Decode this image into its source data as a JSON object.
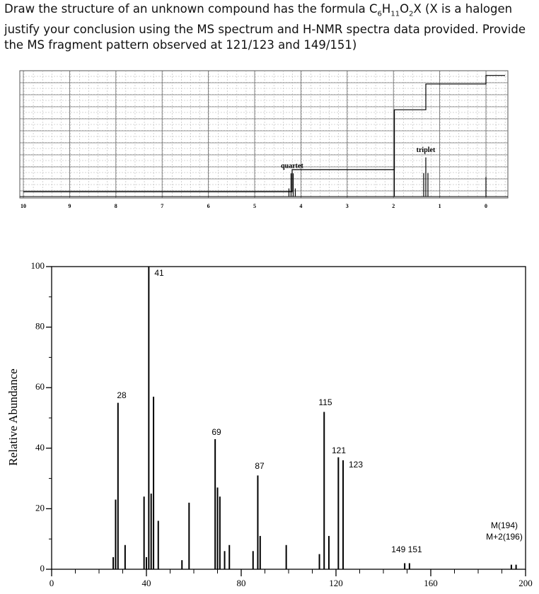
{
  "question": {
    "parts": [
      "Draw the structure of an unknown compound has the formula C",
      "6",
      "H",
      "11",
      "O",
      "2",
      "X (X is a halogen justify your conclusion using the MS spectrum and H-NMR spectra data provided. Provide the MS fragment pattern observed at 121/123 and 149/151)"
    ]
  },
  "nmr": {
    "xlim": [
      10,
      0
    ],
    "xticks": [
      10,
      9,
      8,
      7,
      6,
      5,
      4,
      3,
      2,
      1,
      0
    ],
    "peaks": [
      {
        "ppm": 4.19,
        "height": 19,
        "label": "quartet"
      },
      {
        "ppm": 1.98,
        "height": 71
      },
      {
        "ppm": 1.3,
        "height": 32,
        "label": "triplet"
      },
      {
        "ppm": 0,
        "height": 16
      }
    ],
    "integral": {
      "ppm": [
        10,
        4.19,
        1.98,
        1.3,
        0
      ],
      "levels": [
        4,
        22,
        71,
        92,
        99
      ]
    }
  },
  "ms": {
    "type": "bar",
    "ylabel": "Relative Abundance",
    "xlim": [
      0,
      200
    ],
    "ylim": [
      0,
      100
    ],
    "xticks": [
      0,
      40,
      80,
      120,
      160,
      200
    ],
    "yticks": [
      0,
      20,
      40,
      60,
      80,
      100
    ],
    "color": "#000000",
    "x": [
      26,
      27,
      28,
      31,
      39,
      40,
      41,
      42,
      43,
      45,
      55,
      58,
      69,
      70,
      71,
      73,
      75,
      85,
      87,
      88,
      99,
      113,
      115,
      117,
      121,
      123,
      149,
      151,
      194,
      196
    ],
    "values": [
      4,
      23,
      55,
      8,
      24,
      4,
      100,
      25,
      57,
      16,
      3,
      22,
      43,
      27,
      24,
      6,
      8,
      6,
      31,
      11,
      8,
      5,
      52,
      11,
      37,
      36,
      2,
      2,
      1.5,
      1.5
    ],
    "annotations": [
      "28",
      "41",
      "69",
      "87",
      "115",
      "121",
      "123",
      "149 151",
      "M(194)",
      "M+2(196)"
    ]
  }
}
